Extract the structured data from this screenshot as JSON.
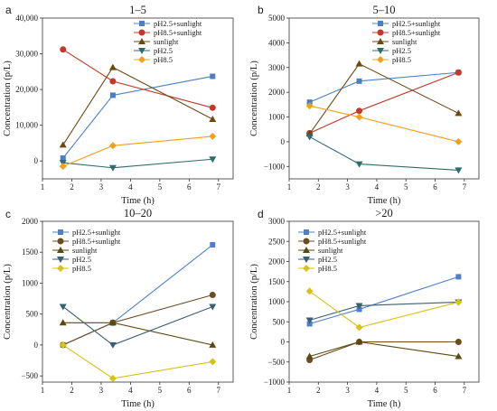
{
  "colors": {
    "pH2.5+sunlight": "#4a7fc1",
    "pH8.5+sunlight": "#c0392b",
    "sunlight": "#6b4a12",
    "pH2.5": "#2f6b6b",
    "pH8.5": "#f0a020",
    "pH2.5+sunlight_cd": "#4f7ecb",
    "pH8.5+sunlight_cd": "#6e4a1f",
    "sunlight_cd": "#5a4a12",
    "pH2.5_cd": "#3a6070",
    "pH8.5_cd": "#d6c218"
  },
  "chart_data": [
    {
      "panel": "a",
      "type": "line",
      "title": "1–5",
      "xlabel": "Time (h)",
      "ylabel": "Concentration (p/L)",
      "xlim": [
        1,
        7.5
      ],
      "ylim": [
        -5000,
        40000
      ],
      "xticks": [
        1,
        2,
        3,
        4,
        5,
        6,
        7
      ],
      "yticks": [
        0,
        10000,
        20000,
        30000,
        40000
      ],
      "ytick_labels": [
        "0",
        "10,000",
        "20,000",
        "30,000",
        "40,000"
      ],
      "x": [
        1.7,
        3.4,
        6.8
      ],
      "legend_position": "top-right",
      "series": [
        {
          "name": "pH2.5+sunlight",
          "marker": "square",
          "color": "#4a7fc1",
          "values": [
            800,
            18400,
            23700
          ]
        },
        {
          "name": "pH8.5+sunlight",
          "marker": "circle",
          "color": "#c0392b",
          "values": [
            31200,
            22300,
            14900
          ]
        },
        {
          "name": "sunlight",
          "marker": "triangle-up",
          "color": "#6b4a12",
          "values": [
            4500,
            26200,
            11700
          ]
        },
        {
          "name": "pH2.5",
          "marker": "triangle-down",
          "color": "#2f6b6b",
          "values": [
            -500,
            -1900,
            500
          ]
        },
        {
          "name": "pH8.5",
          "marker": "diamond",
          "color": "#f0a020",
          "values": [
            -1500,
            4300,
            6900
          ]
        }
      ]
    },
    {
      "panel": "b",
      "type": "line",
      "title": "5–10",
      "xlabel": "Time (h)",
      "ylabel": "Concentration (p/L)",
      "xlim": [
        1,
        7.5
      ],
      "ylim": [
        -1500,
        5000
      ],
      "xticks": [
        1,
        2,
        3,
        4,
        5,
        6,
        7
      ],
      "yticks": [
        -1000,
        0,
        1000,
        2000,
        3000,
        4000,
        5000
      ],
      "ytick_labels": [
        "−1000",
        "0",
        "1000",
        "2000",
        "3000",
        "4000",
        "5000"
      ],
      "x": [
        1.7,
        3.4,
        6.8
      ],
      "legend_position": "top-right",
      "series": [
        {
          "name": "pH2.5+sunlight",
          "marker": "square",
          "color": "#4a7fc1",
          "values": [
            1600,
            2450,
            2800
          ]
        },
        {
          "name": "pH8.5+sunlight",
          "marker": "circle",
          "color": "#c0392b",
          "values": [
            350,
            1250,
            2800
          ]
        },
        {
          "name": "sunlight",
          "marker": "triangle-up",
          "color": "#6b4a12",
          "values": [
            320,
            3150,
            1150
          ]
        },
        {
          "name": "pH2.5",
          "marker": "triangle-down",
          "color": "#2f6b6b",
          "values": [
            200,
            -900,
            -1150
          ]
        },
        {
          "name": "pH8.5",
          "marker": "diamond",
          "color": "#f0a020",
          "values": [
            1450,
            1000,
            0
          ]
        }
      ]
    },
    {
      "panel": "c",
      "type": "line",
      "title": "10–20",
      "xlabel": "Time (h)",
      "ylabel": "Concentration (p/L)",
      "xlim": [
        1,
        7.5
      ],
      "ylim": [
        -600,
        2000
      ],
      "xticks": [
        1,
        2,
        3,
        4,
        5,
        6,
        7
      ],
      "yticks": [
        -500,
        0,
        500,
        1000,
        1500,
        2000
      ],
      "ytick_labels": [
        "−500",
        "0",
        "500",
        "1000",
        "1500",
        "2000"
      ],
      "x": [
        1.7,
        3.4,
        6.8
      ],
      "legend_position": "top-left",
      "series": [
        {
          "name": "pH2.5+sunlight",
          "marker": "square",
          "color": "#4f7ecb",
          "values": [
            0,
            360,
            1620
          ]
        },
        {
          "name": "pH8.5+sunlight",
          "marker": "circle",
          "color": "#6e4a1f",
          "values": [
            0,
            360,
            810
          ]
        },
        {
          "name": "sunlight",
          "marker": "triangle-up",
          "color": "#5a4a12",
          "values": [
            360,
            360,
            0
          ]
        },
        {
          "name": "pH2.5",
          "marker": "triangle-down",
          "color": "#3a6070",
          "values": [
            620,
            0,
            620
          ]
        },
        {
          "name": "pH8.5",
          "marker": "diamond",
          "color": "#d6c218",
          "values": [
            0,
            -540,
            -270
          ]
        }
      ]
    },
    {
      "panel": "d",
      "type": "line",
      "title": ">20",
      "xlabel": "Time (h)",
      "ylabel": "Concentration (p/L)",
      "xlim": [
        1,
        7.5
      ],
      "ylim": [
        -1000,
        3000
      ],
      "xticks": [
        1,
        2,
        3,
        4,
        5,
        6,
        7
      ],
      "yticks": [
        -1000,
        -500,
        0,
        500,
        1000,
        1500,
        2000,
        2500,
        3000
      ],
      "ytick_labels": [
        "−1000",
        "−500",
        "0",
        "500",
        "1000",
        "1500",
        "2000",
        "2500",
        "3000"
      ],
      "x": [
        1.7,
        3.4,
        6.8
      ],
      "legend_position": "top-left",
      "series": [
        {
          "name": "pH2.5+sunlight",
          "marker": "square",
          "color": "#4f7ecb",
          "values": [
            450,
            810,
            1620
          ]
        },
        {
          "name": "pH8.5+sunlight",
          "marker": "circle",
          "color": "#6e4a1f",
          "values": [
            -450,
            0,
            0
          ]
        },
        {
          "name": "sunlight",
          "marker": "triangle-up",
          "color": "#5a4a12",
          "values": [
            -360,
            0,
            -360
          ]
        },
        {
          "name": "pH2.5",
          "marker": "triangle-down",
          "color": "#3a6070",
          "values": [
            540,
            900,
            990
          ]
        },
        {
          "name": "pH8.5",
          "marker": "diamond",
          "color": "#d6c218",
          "values": [
            1260,
            360,
            990
          ]
        }
      ]
    }
  ]
}
